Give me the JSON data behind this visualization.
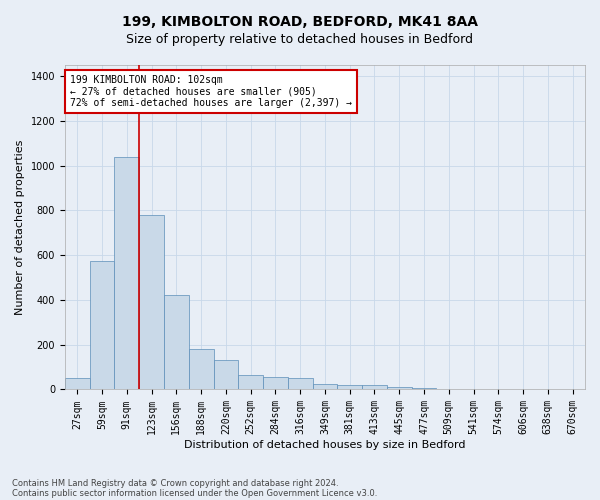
{
  "title1": "199, KIMBOLTON ROAD, BEDFORD, MK41 8AA",
  "title2": "Size of property relative to detached houses in Bedford",
  "xlabel": "Distribution of detached houses by size in Bedford",
  "ylabel": "Number of detached properties",
  "footnote1": "Contains HM Land Registry data © Crown copyright and database right 2024.",
  "footnote2": "Contains public sector information licensed under the Open Government Licence v3.0.",
  "annotation_line1": "199 KIMBOLTON ROAD: 102sqm",
  "annotation_line2": "← 27% of detached houses are smaller (905)",
  "annotation_line3": "72% of semi-detached houses are larger (2,397) →",
  "bar_color": "#c9d9e8",
  "bar_edge_color": "#5b8db8",
  "grid_color": "#c8d8ea",
  "ref_line_color": "#cc0000",
  "categories": [
    "27sqm",
    "59sqm",
    "91sqm",
    "123sqm",
    "156sqm",
    "188sqm",
    "220sqm",
    "252sqm",
    "284sqm",
    "316sqm",
    "349sqm",
    "381sqm",
    "413sqm",
    "445sqm",
    "477sqm",
    "509sqm",
    "541sqm",
    "574sqm",
    "606sqm",
    "638sqm",
    "670sqm"
  ],
  "values": [
    50,
    575,
    1040,
    780,
    420,
    180,
    130,
    65,
    55,
    50,
    25,
    20,
    20,
    12,
    5,
    2,
    1,
    1,
    0,
    0,
    0
  ],
  "ref_line_x": 3.0,
  "ylim": [
    0,
    1450
  ],
  "yticks": [
    0,
    200,
    400,
    600,
    800,
    1000,
    1200,
    1400
  ],
  "background_color": "#e8eef6",
  "plot_background": "#e8eef6",
  "title_fontsize": 10,
  "subtitle_fontsize": 9,
  "axis_label_fontsize": 8,
  "tick_fontsize": 7,
  "footnote_fontsize": 6
}
